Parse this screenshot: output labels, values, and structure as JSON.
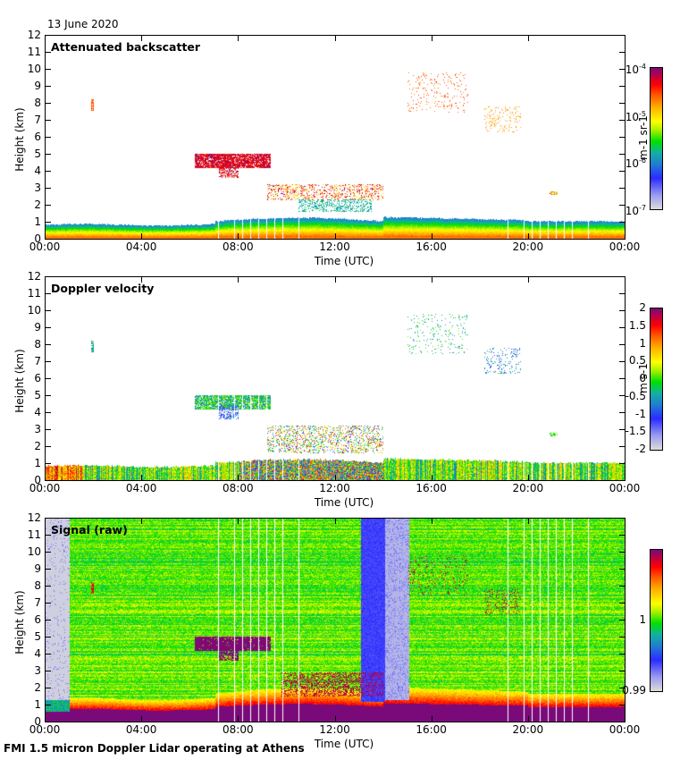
{
  "header": {
    "date": "13 June 2020"
  },
  "footer": {
    "caption": "FMI 1.5 micron Doppler Lidar operating at Athens"
  },
  "chart_data": [
    {
      "type": "heatmap",
      "title": "Attenuated backscatter",
      "xlabel": "Time (UTC)",
      "ylabel": "Height (km)",
      "x_ticks": [
        "00:00",
        "04:00",
        "08:00",
        "12:00",
        "16:00",
        "20:00",
        "00:00"
      ],
      "y_ticks": [
        "0",
        "1",
        "2",
        "3",
        "4",
        "5",
        "6",
        "7",
        "8",
        "9",
        "10",
        "11",
        "12"
      ],
      "xlim_hours": [
        0,
        24
      ],
      "ylim_km": [
        0,
        12
      ],
      "colorbar": {
        "label": "m-1 sr-1",
        "scale": "log",
        "range": [
          1e-07,
          0.0001
        ],
        "ticks": [
          {
            "base": "10",
            "exp": "-4"
          },
          {
            "base": "10",
            "exp": "-5"
          },
          {
            "base": "10",
            "exp": "-6"
          },
          {
            "base": "10",
            "exp": "-7"
          }
        ]
      },
      "features": [
        {
          "name": "boundary-layer",
          "time_h": [
            0,
            24
          ],
          "top_km": [
            0.8,
            1.5
          ]
        },
        {
          "name": "mid-level cloud",
          "time_h": [
            6.2,
            9.3
          ],
          "height_km": [
            3.6,
            5.3
          ]
        },
        {
          "name": "broken cloud",
          "time_h": [
            9.0,
            14.0
          ],
          "height_km": [
            1.8,
            3.8
          ]
        },
        {
          "name": "cirrus",
          "time_h": [
            15.0,
            20.0
          ],
          "height_km": [
            6.0,
            10.0
          ]
        }
      ]
    },
    {
      "type": "heatmap",
      "title": "Doppler velocity",
      "xlabel": "Time (UTC)",
      "ylabel": "Height (km)",
      "x_ticks": [
        "00:00",
        "04:00",
        "08:00",
        "12:00",
        "16:00",
        "20:00",
        "00:00"
      ],
      "y_ticks": [
        "0",
        "1",
        "2",
        "3",
        "4",
        "5",
        "6",
        "7",
        "8",
        "9",
        "10",
        "11",
        "12"
      ],
      "xlim_hours": [
        0,
        24
      ],
      "ylim_km": [
        0,
        12
      ],
      "colorbar": {
        "label": "m s-1",
        "scale": "linear",
        "range": [
          -2,
          2
        ],
        "ticks": [
          "2",
          "1.5",
          "1",
          "0.5",
          "0",
          "-0.5",
          "-1",
          "-1.5",
          "-2"
        ]
      }
    },
    {
      "type": "heatmap",
      "title": "Signal (raw)",
      "xlabel": "Time (UTC)",
      "ylabel": "Height (km)",
      "x_ticks": [
        "00:00",
        "04:00",
        "08:00",
        "12:00",
        "16:00",
        "20:00",
        "00:00"
      ],
      "y_ticks": [
        "0",
        "1",
        "2",
        "3",
        "4",
        "5",
        "6",
        "7",
        "8",
        "9",
        "10",
        "11",
        "12"
      ],
      "xlim_hours": [
        0,
        24
      ],
      "ylim_km": [
        0,
        12
      ],
      "colorbar": {
        "label": "",
        "scale": "linear",
        "range": [
          0.99,
          1.01
        ],
        "ticks": [
          "1",
          "0.99"
        ]
      }
    }
  ]
}
